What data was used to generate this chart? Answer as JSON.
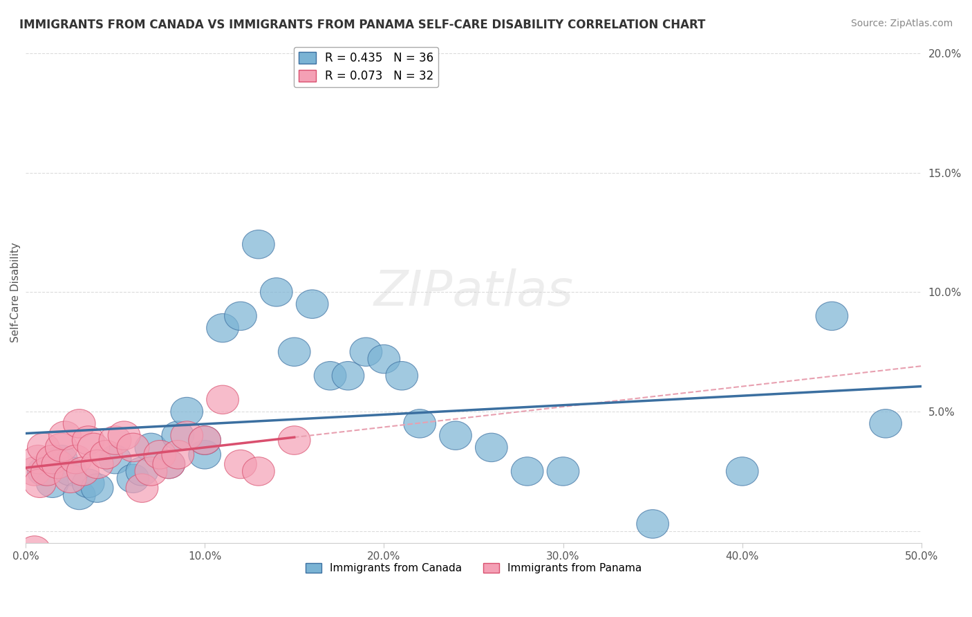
{
  "title": "IMMIGRANTS FROM CANADA VS IMMIGRANTS FROM PANAMA SELF-CARE DISABILITY CORRELATION CHART",
  "source": "Source: ZipAtlas.com",
  "xlabel": "",
  "ylabel": "Self-Care Disability",
  "xlim": [
    0.0,
    0.5
  ],
  "ylim": [
    -0.005,
    0.205
  ],
  "xticks": [
    0.0,
    0.1,
    0.2,
    0.3,
    0.4,
    0.5
  ],
  "xtick_labels": [
    "0.0%",
    "10.0%",
    "20.0%",
    "30.0%",
    "40.0%",
    "50.0%"
  ],
  "yticks": [
    0.0,
    0.05,
    0.1,
    0.15,
    0.2
  ],
  "ytick_labels": [
    "",
    "5.0%",
    "10.0%",
    "15.0%",
    "20.0%"
  ],
  "legend1_label": "R = 0.435   N = 36",
  "legend2_label": "R = 0.073   N = 32",
  "legend_bottom_label": "Immigrants from Canada",
  "legend_bottom_label2": "Immigrants from Panama",
  "blue_color": "#7ab3d4",
  "pink_color": "#f4a0b5",
  "blue_line_color": "#3b6fa0",
  "pink_line_color": "#d94f6e",
  "pink_dashed_color": "#e8a0b0",
  "grid_color": "#cccccc",
  "background_color": "#ffffff",
  "canada_x": [
    0.01,
    0.015,
    0.02,
    0.025,
    0.03,
    0.035,
    0.04,
    0.05,
    0.06,
    0.065,
    0.07,
    0.08,
    0.085,
    0.09,
    0.1,
    0.1,
    0.11,
    0.12,
    0.13,
    0.14,
    0.15,
    0.16,
    0.17,
    0.18,
    0.19,
    0.2,
    0.21,
    0.22,
    0.24,
    0.26,
    0.28,
    0.3,
    0.35,
    0.4,
    0.45,
    0.48
  ],
  "canada_y": [
    0.025,
    0.02,
    0.03,
    0.025,
    0.015,
    0.02,
    0.018,
    0.03,
    0.022,
    0.025,
    0.035,
    0.028,
    0.04,
    0.05,
    0.032,
    0.038,
    0.085,
    0.09,
    0.12,
    0.1,
    0.075,
    0.095,
    0.065,
    0.065,
    0.075,
    0.072,
    0.065,
    0.045,
    0.04,
    0.035,
    0.025,
    0.025,
    0.003,
    0.025,
    0.09,
    0.045
  ],
  "panama_x": [
    0.005,
    0.007,
    0.008,
    0.01,
    0.012,
    0.015,
    0.018,
    0.02,
    0.022,
    0.025,
    0.028,
    0.03,
    0.032,
    0.035,
    0.038,
    0.04,
    0.045,
    0.05,
    0.055,
    0.06,
    0.065,
    0.07,
    0.075,
    0.08,
    0.085,
    0.09,
    0.1,
    0.11,
    0.12,
    0.13,
    0.15,
    0.005
  ],
  "panama_y": [
    0.025,
    0.03,
    0.02,
    0.035,
    0.025,
    0.03,
    0.028,
    0.035,
    0.04,
    0.022,
    0.03,
    0.045,
    0.025,
    0.038,
    0.035,
    0.028,
    0.032,
    0.038,
    0.04,
    0.035,
    0.018,
    0.025,
    0.032,
    0.028,
    0.032,
    0.04,
    0.038,
    0.055,
    0.028,
    0.025,
    0.038,
    -0.008
  ]
}
